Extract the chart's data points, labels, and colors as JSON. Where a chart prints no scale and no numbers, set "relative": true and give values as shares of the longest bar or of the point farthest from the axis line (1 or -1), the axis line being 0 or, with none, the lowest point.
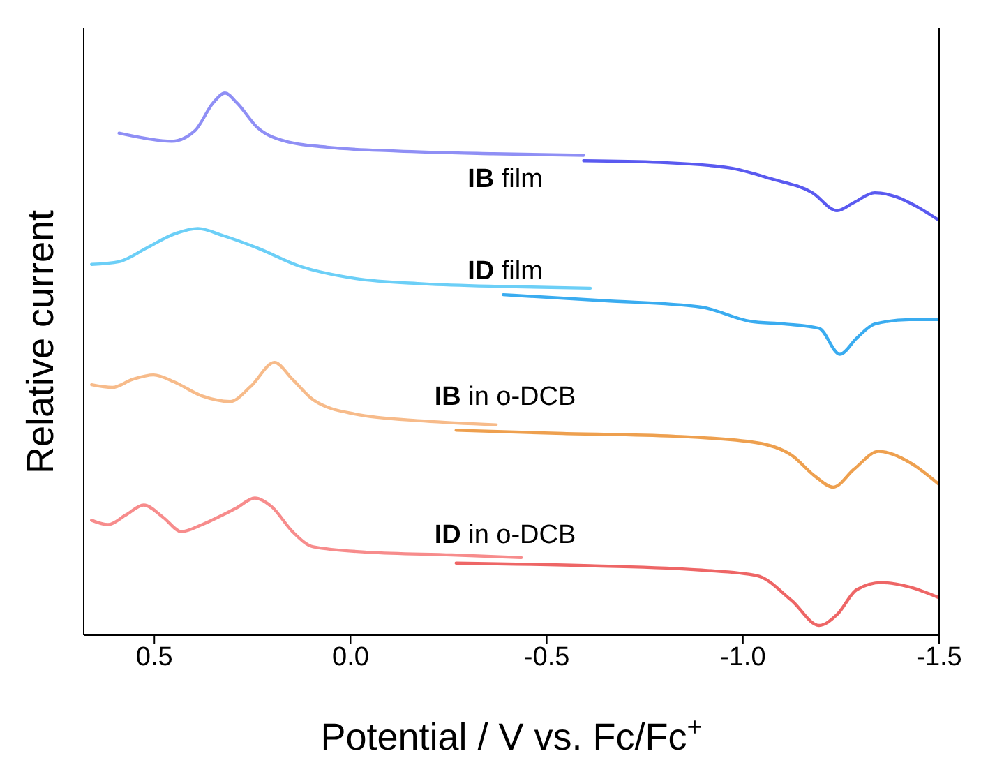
{
  "chart_data": {
    "type": "line",
    "xlabel": "Potential / V vs. Fc/Fc$^{+}$",
    "ylabel": "Relative current",
    "relative": true,
    "xlim": [
      0.68,
      -1.5
    ],
    "xticks": [
      {
        "value": 0.5,
        "label": "0.5"
      },
      {
        "value": 0,
        "label": "0.0"
      },
      {
        "value": -0.5,
        "label": "-0.5"
      },
      {
        "value": -1,
        "label": "-1.0"
      },
      {
        "value": -1.5,
        "label": "-1.5"
      }
    ],
    "grid": false,
    "marker": "none",
    "line_style": "solid",
    "annotations": [
      "IB film",
      "ID film",
      "IB in o-DCB",
      "ID in o-DCB"
    ],
    "series": [
      {
        "color": "#8f8ff5",
        "x": [
          0.59,
          0.52,
          0.456,
          0.396,
          0.35,
          0.32,
          0.29,
          0.237,
          0.166,
          0.06,
          -0.117,
          -0.364,
          -0.594
        ],
        "values": [
          0.926,
          0.916,
          0.911,
          0.931,
          0.982,
          1.0,
          0.982,
          0.936,
          0.911,
          0.9,
          0.893,
          0.888,
          0.885
        ]
      },
      {
        "color": "#5a5af0",
        "x": [
          -0.594,
          -0.788,
          -0.965,
          -1.071,
          -1.177,
          -1.24,
          -1.283,
          -1.336,
          -1.389,
          -1.442,
          -1.5
        ],
        "values": [
          0.875,
          0.872,
          0.862,
          0.842,
          0.816,
          0.783,
          0.798,
          0.816,
          0.809,
          0.791,
          0.765
        ]
      },
      {
        "color": "#6ccff7",
        "x": [
          0.66,
          0.59,
          0.52,
          0.449,
          0.389,
          0.325,
          0.237,
          0.131,
          -0.011,
          -0.187,
          -0.399,
          -0.611
        ],
        "values": [
          0.684,
          0.689,
          0.714,
          0.74,
          0.75,
          0.737,
          0.714,
          0.681,
          0.658,
          0.648,
          0.643,
          0.64
        ]
      },
      {
        "color": "#3aacf0",
        "x": [
          -0.389,
          -0.647,
          -0.894,
          -1.018,
          -1.106,
          -1.194,
          -1.247,
          -1.29,
          -1.336,
          -1.424,
          -1.5
        ],
        "values": [
          0.628,
          0.617,
          0.605,
          0.579,
          0.574,
          0.566,
          0.518,
          0.548,
          0.574,
          0.582,
          0.582
        ]
      },
      {
        "color": "#f7bb8a",
        "x": [
          0.66,
          0.607,
          0.555,
          0.502,
          0.449,
          0.378,
          0.307,
          0.254,
          0.194,
          0.148,
          0.095,
          -0.011,
          -0.187,
          -0.371
        ],
        "values": [
          0.462,
          0.457,
          0.472,
          0.48,
          0.467,
          0.441,
          0.431,
          0.459,
          0.503,
          0.472,
          0.434,
          0.408,
          0.395,
          0.388
        ]
      },
      {
        "color": "#eea04f",
        "x": [
          -0.269,
          -0.541,
          -0.823,
          -1.035,
          -1.124,
          -1.184,
          -1.23,
          -1.283,
          -1.346,
          -1.424,
          -1.5
        ],
        "values": [
          0.378,
          0.372,
          0.367,
          0.355,
          0.332,
          0.293,
          0.273,
          0.306,
          0.339,
          0.319,
          0.278
        ]
      },
      {
        "color": "#f78c8c",
        "x": [
          0.66,
          0.618,
          0.572,
          0.527,
          0.477,
          0.431,
          0.378,
          0.325,
          0.29,
          0.244,
          0.201,
          0.148,
          0.095,
          -0.046,
          -0.258,
          -0.435
        ],
        "values": [
          0.212,
          0.204,
          0.222,
          0.24,
          0.217,
          0.191,
          0.204,
          0.222,
          0.235,
          0.253,
          0.237,
          0.191,
          0.163,
          0.153,
          0.148,
          0.143
        ]
      },
      {
        "color": "#ee6666",
        "x": [
          -0.269,
          -0.611,
          -0.894,
          -1.035,
          -1.124,
          -1.194,
          -1.24,
          -1.29,
          -1.353,
          -1.424,
          -1.5
        ],
        "values": [
          0.133,
          0.128,
          0.12,
          0.11,
          0.064,
          0.018,
          0.038,
          0.084,
          0.097,
          0.089,
          0.069
        ]
      }
    ]
  }
}
